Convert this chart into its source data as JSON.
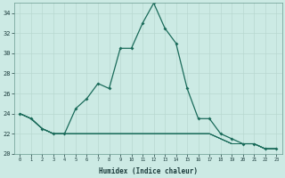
{
  "xlabel": "Humidex (Indice chaleur)",
  "ylabel": "",
  "bg_color": "#cceae4",
  "grid_color": "#b8d8d0",
  "plot_color": "#1a6b5a",
  "xlim": [
    -0.5,
    23.5
  ],
  "ylim": [
    20,
    35
  ],
  "xticks": [
    0,
    1,
    2,
    3,
    4,
    5,
    6,
    7,
    8,
    9,
    10,
    11,
    12,
    13,
    14,
    15,
    16,
    17,
    18,
    19,
    20,
    21,
    22,
    23
  ],
  "yticks": [
    20,
    22,
    24,
    26,
    28,
    30,
    32,
    34
  ],
  "series": [
    [
      24.0,
      23.5,
      22.5,
      22.0,
      22.0,
      24.5,
      25.5,
      27.0,
      26.5,
      30.5,
      30.5,
      33.0,
      35.0,
      32.5,
      31.0,
      26.5,
      23.5,
      23.5,
      22.0,
      21.5,
      21.0,
      21.0,
      20.5,
      20.5
    ],
    [
      24.0,
      23.5,
      22.5,
      22.0,
      22.0,
      22.0,
      22.0,
      22.0,
      22.0,
      22.0,
      22.0,
      22.0,
      22.0,
      22.0,
      22.0,
      22.0,
      22.0,
      22.0,
      21.5,
      21.0,
      21.0,
      21.0,
      20.5,
      20.5
    ],
    [
      24.0,
      23.5,
      22.5,
      22.0,
      22.0,
      22.0,
      22.0,
      22.0,
      22.0,
      22.0,
      22.0,
      22.0,
      22.0,
      22.0,
      22.0,
      22.0,
      22.0,
      22.0,
      21.5,
      21.0,
      21.0,
      21.0,
      20.5,
      20.5
    ],
    [
      24.0,
      23.5,
      22.5,
      22.0,
      22.0,
      22.0,
      22.0,
      22.0,
      22.0,
      22.0,
      22.0,
      22.0,
      22.0,
      22.0,
      22.0,
      22.0,
      22.0,
      22.0,
      21.5,
      21.0,
      21.0,
      21.0,
      20.5,
      20.5
    ]
  ]
}
